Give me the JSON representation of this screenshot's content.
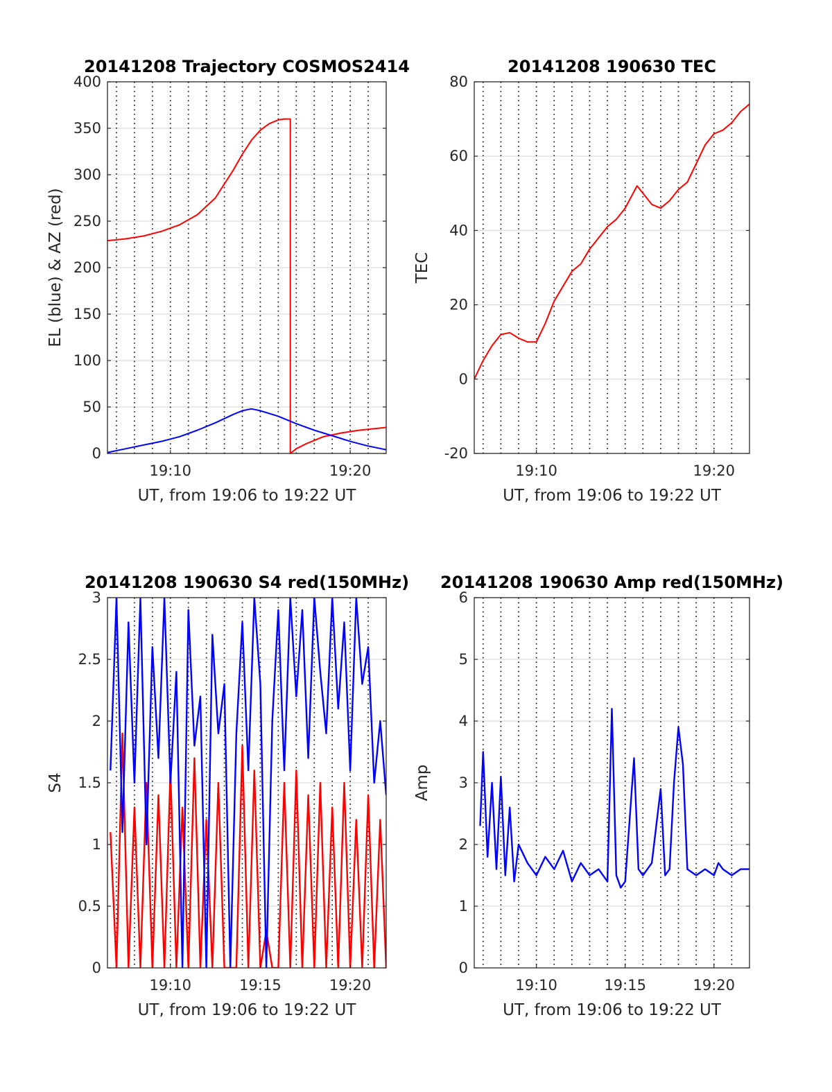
{
  "chart_data": [
    {
      "type": "line",
      "title": "20141208 Trajectory COSMOS2414",
      "xlabel": "UT, from 19:06 to 19:22 UT",
      "ylabel": "EL (blue) & AZ (red)",
      "xlim": [
        "19:06:30",
        "19:22:00"
      ],
      "ylim": [
        0,
        400
      ],
      "xticks": [
        "19:10",
        "19:20"
      ],
      "yticks": [
        0,
        50,
        100,
        150,
        200,
        250,
        300,
        350,
        400
      ],
      "grid": "on",
      "series": [
        {
          "color": "#ff0000",
          "x": [
            "19:06:30",
            "19:07:30",
            "19:08:30",
            "19:09:30",
            "19:10:30",
            "19:11:30",
            "19:12:30",
            "19:13:30",
            "19:14:00",
            "19:14:30",
            "19:15:00",
            "19:15:30",
            "19:16:00",
            "19:16:20",
            "19:16:40",
            "19:16:40",
            "19:17:00",
            "19:17:30",
            "19:18:00",
            "19:18:30",
            "19:19:30",
            "19:20:30",
            "19:22:00"
          ],
          "values": [
            229,
            231,
            234,
            239,
            246,
            257,
            275,
            305,
            322,
            337,
            348,
            355,
            359,
            360,
            360,
            0,
            5,
            10,
            14,
            18,
            22,
            25,
            28
          ]
        },
        {
          "color": "#0000ff",
          "x": [
            "19:06:30",
            "19:07:30",
            "19:08:30",
            "19:09:30",
            "19:10:30",
            "19:11:30",
            "19:12:30",
            "19:13:30",
            "19:14:00",
            "19:14:30",
            "19:15:00",
            "19:16:00",
            "19:17:00",
            "19:18:00",
            "19:19:00",
            "19:20:00",
            "19:21:00",
            "19:22:00"
          ],
          "values": [
            1,
            5,
            9,
            13,
            18,
            25,
            33,
            42,
            46,
            48,
            46,
            40,
            32,
            25,
            19,
            13,
            8,
            4
          ]
        }
      ]
    },
    {
      "type": "line",
      "title": "20141208 190630 TEC",
      "xlabel": "UT, from 19:06 to 19:22 UT",
      "ylabel": "TEC",
      "xlim": [
        "19:06:30",
        "19:22:00"
      ],
      "ylim": [
        -20,
        80
      ],
      "xticks": [
        "19:10",
        "19:20"
      ],
      "yticks": [
        -20,
        0,
        20,
        40,
        60,
        80
      ],
      "grid": "on",
      "series": [
        {
          "color": "#ff0000",
          "x": [
            "19:06:30",
            "19:07:00",
            "19:07:30",
            "19:08:00",
            "19:08:30",
            "19:09:00",
            "19:09:30",
            "19:10:00",
            "19:10:30",
            "19:11:00",
            "19:11:30",
            "19:12:00",
            "19:12:30",
            "19:13:00",
            "19:13:30",
            "19:14:00",
            "19:14:30",
            "19:15:00",
            "19:15:20",
            "19:15:40",
            "19:16:00",
            "19:16:30",
            "19:17:00",
            "19:17:30",
            "19:18:00",
            "19:18:30",
            "19:19:00",
            "19:19:30",
            "19:20:00",
            "19:20:30",
            "19:21:00",
            "19:21:30",
            "19:22:00"
          ],
          "values": [
            0,
            5,
            9,
            12,
            12.5,
            11,
            10,
            10,
            15,
            21,
            25,
            29,
            31,
            35,
            38,
            41,
            43,
            46,
            49,
            52,
            50,
            47,
            46,
            48,
            51,
            53,
            58,
            63,
            66,
            67,
            69,
            72,
            74
          ]
        }
      ]
    },
    {
      "type": "line",
      "title": "20141208 190630 S4 red(150MHz)",
      "xlabel": "UT, from 19:06 to 19:22 UT",
      "ylabel": "S4",
      "xlim": [
        "19:06:30",
        "19:22:00"
      ],
      "ylim": [
        0,
        3
      ],
      "xticks": [
        "19:10",
        "19:15",
        "19:20"
      ],
      "yticks": [
        0,
        0.5,
        1,
        1.5,
        2,
        2.5,
        3
      ],
      "grid": "on",
      "series": [
        {
          "color": "#ff0000",
          "x": [
            "19:06:40",
            "19:07:00",
            "19:07:20",
            "19:07:40",
            "19:08:00",
            "19:08:20",
            "19:08:40",
            "19:09:00",
            "19:09:20",
            "19:09:40",
            "19:10:00",
            "19:10:20",
            "19:10:40",
            "19:11:00",
            "19:11:20",
            "19:11:40",
            "19:12:00",
            "19:12:20",
            "19:12:40",
            "19:13:00",
            "19:13:20",
            "19:13:40",
            "19:14:00",
            "19:14:20",
            "19:14:40",
            "19:15:00",
            "19:15:20",
            "19:15:40",
            "19:16:00",
            "19:16:20",
            "19:16:40",
            "19:17:00",
            "19:17:20",
            "19:17:40",
            "19:18:00",
            "19:18:20",
            "19:18:40",
            "19:19:00",
            "19:19:20",
            "19:19:40",
            "19:20:00",
            "19:20:20",
            "19:20:40",
            "19:21:00",
            "19:21:20",
            "19:21:40",
            "19:22:00"
          ],
          "values": [
            1.1,
            0,
            1.9,
            0,
            1.3,
            0,
            1.5,
            0,
            1.4,
            0,
            1.6,
            0,
            1.3,
            0,
            1.7,
            0,
            1.2,
            0,
            1.5,
            0,
            0,
            0,
            1.8,
            0,
            1.6,
            0,
            0.3,
            0,
            0,
            1.5,
            0,
            1.6,
            0,
            1.4,
            0,
            1.5,
            0,
            1.3,
            0,
            1.5,
            0,
            1.2,
            0,
            1.4,
            0,
            1.2,
            0
          ]
        },
        {
          "color": "#0000ff",
          "x": [
            "19:06:40",
            "19:07:00",
            "19:07:20",
            "19:07:40",
            "19:08:00",
            "19:08:20",
            "19:08:40",
            "19:09:00",
            "19:09:20",
            "19:09:40",
            "19:10:00",
            "19:10:20",
            "19:10:40",
            "19:11:00",
            "19:11:20",
            "19:11:40",
            "19:12:00",
            "19:12:20",
            "19:12:40",
            "19:13:00",
            "19:13:20",
            "19:13:40",
            "19:14:00",
            "19:14:20",
            "19:14:40",
            "19:15:00",
            "19:15:20",
            "19:15:40",
            "19:16:00",
            "19:16:20",
            "19:16:40",
            "19:17:00",
            "19:17:20",
            "19:17:40",
            "19:18:00",
            "19:18:20",
            "19:18:40",
            "19:19:00",
            "19:19:20",
            "19:19:40",
            "19:20:00",
            "19:20:20",
            "19:20:40",
            "19:21:00",
            "19:21:20",
            "19:21:40",
            "19:22:00"
          ],
          "values": [
            1.6,
            3,
            1.1,
            2.8,
            1.5,
            3,
            1.0,
            2.6,
            1.7,
            3,
            1.5,
            2.4,
            0,
            2.9,
            1.8,
            2.2,
            0,
            2.7,
            1.9,
            2.3,
            0,
            1.9,
            2.8,
            1.6,
            3,
            2.3,
            0,
            2.0,
            2.9,
            1.6,
            3,
            2.2,
            2.9,
            1.7,
            3,
            2.4,
            1.9,
            3,
            2.1,
            2.8,
            1.6,
            3,
            2.3,
            2.6,
            1.5,
            2.0,
            1.4
          ]
        }
      ]
    },
    {
      "type": "line",
      "title": "20141208 190630 Amp red(150MHz)",
      "xlabel": "UT, from 19:06 to 19:22 UT",
      "ylabel": "Amp",
      "xlim": [
        "19:06:30",
        "19:22:00"
      ],
      "ylim": [
        0,
        6
      ],
      "xticks": [
        "19:10",
        "19:15",
        "19:20"
      ],
      "yticks": [
        0,
        1,
        2,
        3,
        4,
        5,
        6
      ],
      "grid": "on",
      "series": [
        {
          "color": "#0000ff",
          "x": [
            "19:06:50",
            "19:07:00",
            "19:07:15",
            "19:07:30",
            "19:07:45",
            "19:08:00",
            "19:08:15",
            "19:08:30",
            "19:08:45",
            "19:09:00",
            "19:09:30",
            "19:10:00",
            "19:10:30",
            "19:11:00",
            "19:11:30",
            "19:12:00",
            "19:12:30",
            "19:13:00",
            "19:13:30",
            "19:14:00",
            "19:14:15",
            "19:14:30",
            "19:14:45",
            "19:15:00",
            "19:15:30",
            "19:15:45",
            "19:16:00",
            "19:16:30",
            "19:17:00",
            "19:17:15",
            "19:17:30",
            "19:17:45",
            "19:18:00",
            "19:18:15",
            "19:18:30",
            "19:19:00",
            "19:19:30",
            "19:20:00",
            "19:20:15",
            "19:20:30",
            "19:21:00",
            "19:21:30",
            "19:22:00"
          ],
          "values": [
            2.3,
            3.5,
            1.8,
            3.0,
            1.6,
            3.1,
            1.5,
            2.6,
            1.4,
            2.0,
            1.7,
            1.5,
            1.8,
            1.6,
            1.9,
            1.4,
            1.7,
            1.5,
            1.6,
            1.4,
            4.2,
            1.5,
            1.3,
            1.4,
            3.4,
            1.6,
            1.5,
            1.7,
            2.9,
            1.5,
            1.6,
            3.0,
            3.9,
            3.3,
            1.6,
            1.5,
            1.6,
            1.5,
            1.7,
            1.6,
            1.5,
            1.6,
            1.6
          ]
        }
      ]
    }
  ]
}
